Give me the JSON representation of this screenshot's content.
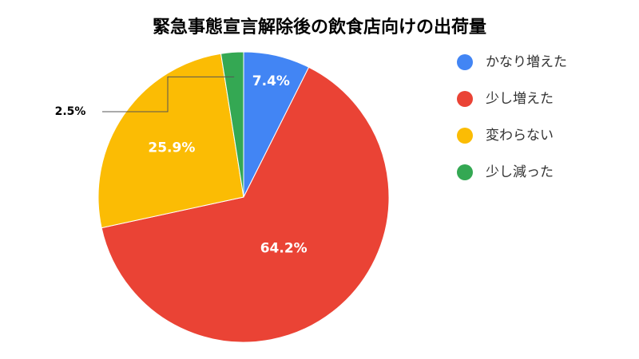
{
  "chart_data": {
    "type": "pie",
    "title": "緊急事態宣言解除後の飲食店向けの出荷量",
    "categories": [
      "かなり増えた",
      "少し増えた",
      "変わらない",
      "少し減った"
    ],
    "values": [
      7.4,
      64.2,
      25.9,
      2.5
    ],
    "value_labels": [
      "7.4%",
      "64.2%",
      "25.9%",
      "2.5%"
    ],
    "colors": [
      "#4285f4",
      "#ea4335",
      "#fbbc04",
      "#34a853"
    ],
    "legend": "right"
  }
}
